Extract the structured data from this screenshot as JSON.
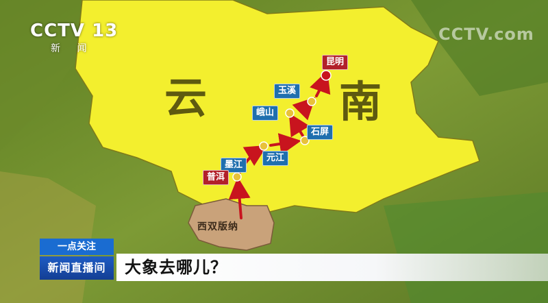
{
  "broadcast": {
    "channel_logo": "CCTV 13",
    "channel_sub": "新 闻",
    "watermark": "CCTV.com"
  },
  "map": {
    "region_name_chars": [
      "云",
      "南"
    ],
    "cities": [
      {
        "name": "昆明",
        "style": "red"
      },
      {
        "name": "玉溪",
        "style": "blue"
      },
      {
        "name": "峨山",
        "style": "blue"
      },
      {
        "name": "石屏",
        "style": "blue"
      },
      {
        "name": "元江",
        "style": "blue"
      },
      {
        "name": "墨江",
        "style": "blue"
      },
      {
        "name": "普洱",
        "style": "red"
      }
    ],
    "start_region": "西双版纳",
    "route_order": [
      "西双版纳",
      "普洱",
      "墨江",
      "元江",
      "石屏",
      "峨山",
      "玉溪",
      "昆明"
    ],
    "colors": {
      "yunnan": "#f3ef2e",
      "xishuangbanna": "#c9a27a",
      "route_arrow": "#c8141e",
      "terrain": "#6f8f2e"
    }
  },
  "ticker": {
    "tag": "一点关注",
    "program": "新闻直播间",
    "headline": "大象去哪儿？"
  }
}
